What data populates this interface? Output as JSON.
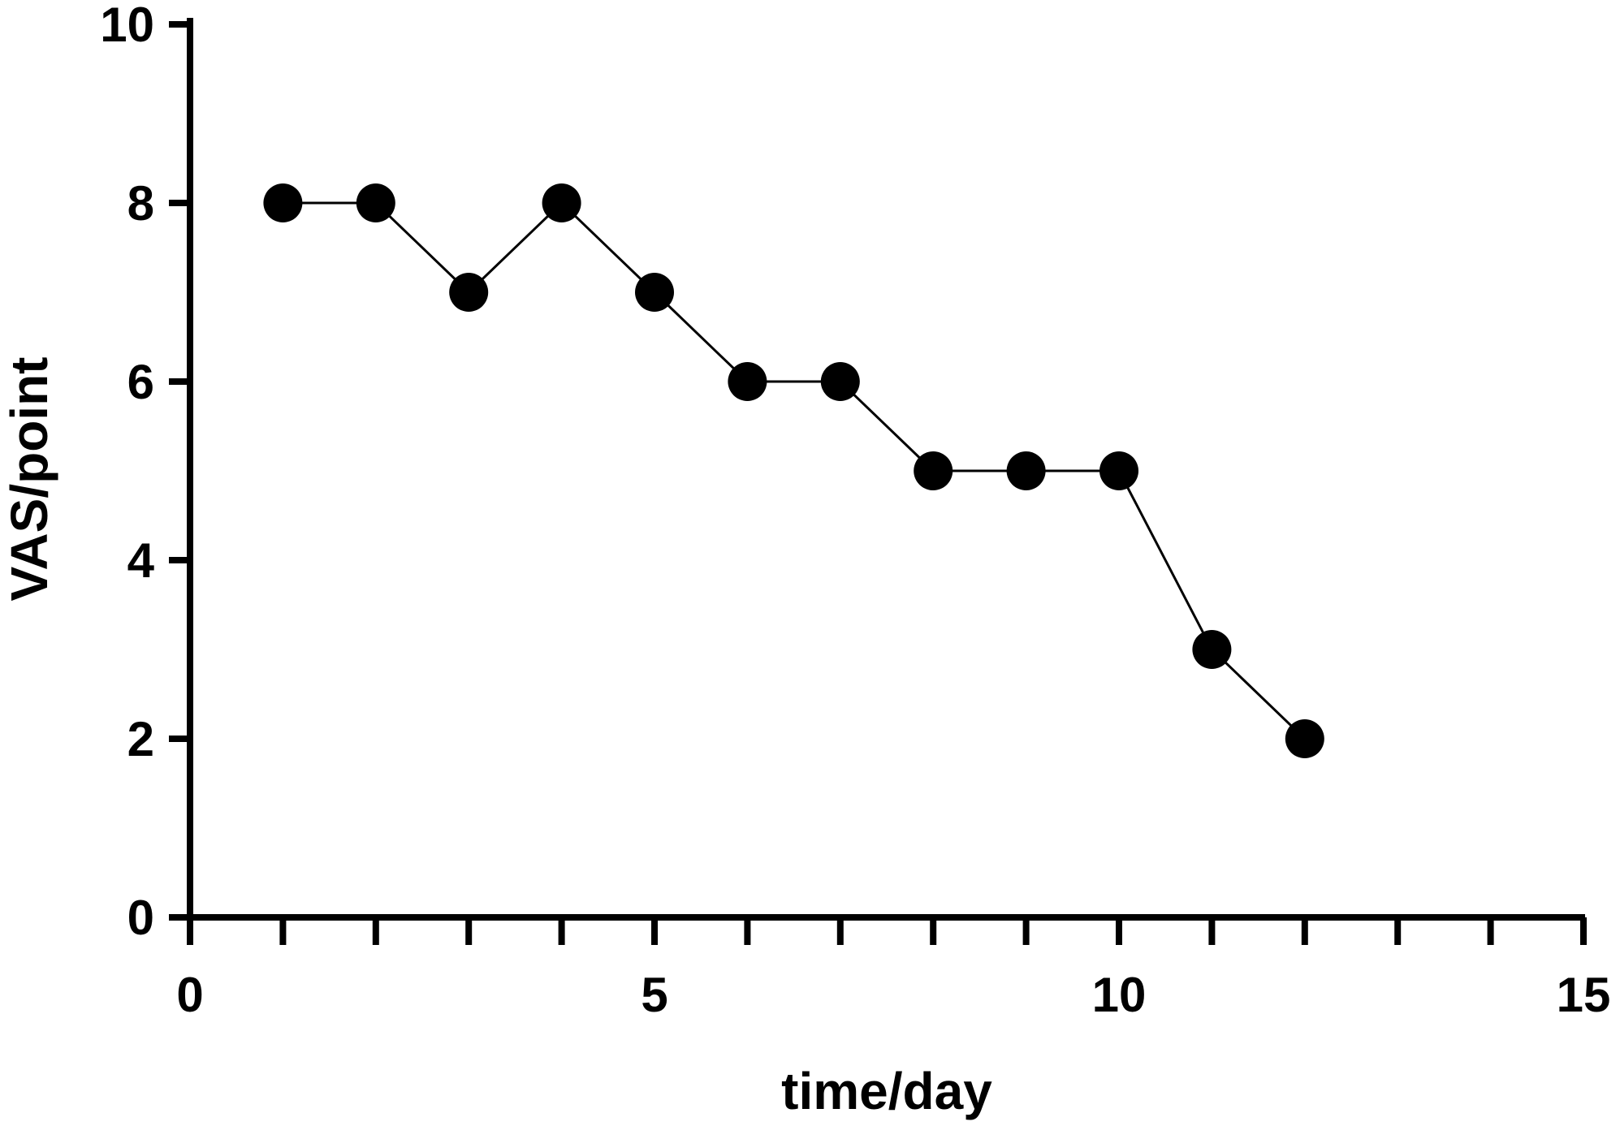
{
  "chart_data": {
    "type": "line",
    "title": "",
    "xlabel": "time/day",
    "ylabel": "VAS/point",
    "xlim": [
      0,
      15
    ],
    "ylim": [
      0,
      10
    ],
    "x_ticks_major": [
      0,
      5,
      10,
      15
    ],
    "x_ticks_minor": [
      1,
      2,
      3,
      4,
      6,
      7,
      8,
      9,
      11,
      12,
      13,
      14
    ],
    "y_ticks": [
      0,
      2,
      4,
      6,
      8,
      10
    ],
    "x_tick_labels": [
      "0",
      "5",
      "10",
      "15"
    ],
    "y_tick_labels": [
      "0",
      "2",
      "4",
      "6",
      "8",
      "10"
    ],
    "grid": false,
    "legend": "none",
    "series": [
      {
        "x": [
          1,
          2,
          3,
          4,
          5,
          6,
          7,
          8,
          9,
          10,
          11,
          12
        ],
        "y": [
          8,
          8,
          7,
          8,
          7,
          6,
          6,
          5,
          5,
          5,
          3,
          2
        ],
        "color": "#000000",
        "marker": "circle"
      }
    ]
  }
}
